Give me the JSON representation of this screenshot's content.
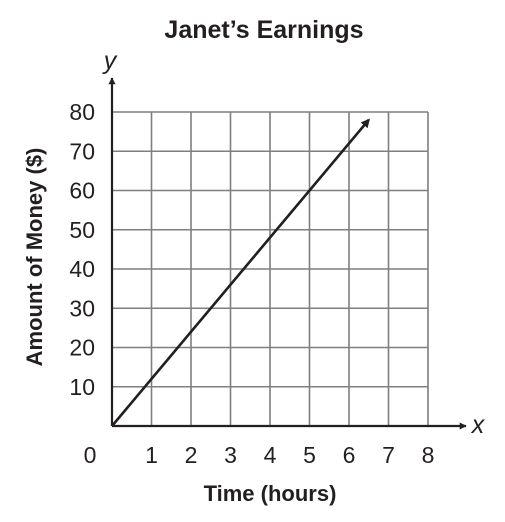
{
  "chart_data": {
    "type": "line",
    "title": "Janet’s Earnings",
    "xlabel": "Time (hours)",
    "ylabel": "Amount of Money ($)",
    "x_var": "x",
    "y_var": "y",
    "origin_label": "0",
    "xlim": [
      0,
      8
    ],
    "ylim": [
      0,
      80
    ],
    "x_ticks": [
      "1",
      "2",
      "3",
      "4",
      "5",
      "6",
      "7",
      "8"
    ],
    "y_ticks": [
      "10",
      "20",
      "30",
      "40",
      "50",
      "60",
      "70",
      "80"
    ],
    "grid": true,
    "series": [
      {
        "x": [
          0,
          6.5
        ],
        "y": [
          0,
          78
        ]
      }
    ],
    "colors": {
      "line": "#231f20",
      "grid": "#7f7f7f",
      "text": "#231f20"
    }
  }
}
